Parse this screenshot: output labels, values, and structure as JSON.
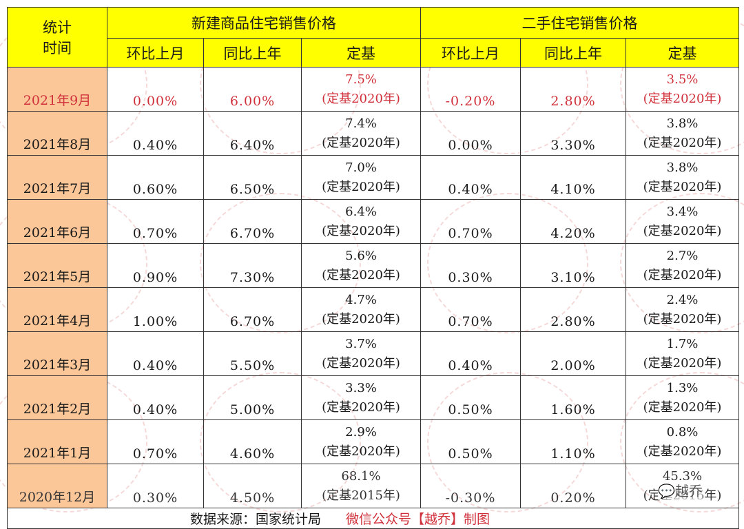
{
  "table": {
    "header": {
      "time_label_line1": "统计",
      "time_label_line2": "时间",
      "group_new": "新建商品住宅销售价格",
      "group_used": "二手住宅销售价格",
      "sub_columns": [
        "环比上月",
        "同比上年",
        "定基",
        "环比上月",
        "同比上年",
        "定基"
      ]
    },
    "rows": [
      {
        "time": "2021年9月",
        "new_mom": "0.00%",
        "new_yoy": "6.00%",
        "new_base_val": "7.5%",
        "new_base_note": "(定基2020年)",
        "used_mom": "-0.20%",
        "used_yoy": "2.80%",
        "used_base_val": "3.5%",
        "used_base_note": "(定基2020年)",
        "highlight": true
      },
      {
        "time": "2021年8月",
        "new_mom": "0.40%",
        "new_yoy": "6.40%",
        "new_base_val": "7.4%",
        "new_base_note": "(定基2020年)",
        "used_mom": "0.00%",
        "used_yoy": "3.30%",
        "used_base_val": "3.8%",
        "used_base_note": "(定基2020年)"
      },
      {
        "time": "2021年7月",
        "new_mom": "0.60%",
        "new_yoy": "6.50%",
        "new_base_val": "7.0%",
        "new_base_note": "(定基2020年)",
        "used_mom": "0.40%",
        "used_yoy": "4.10%",
        "used_base_val": "3.8%",
        "used_base_note": "(定基2020年)"
      },
      {
        "time": "2021年6月",
        "new_mom": "0.70%",
        "new_yoy": "6.70%",
        "new_base_val": "6.4%",
        "new_base_note": "(定基2020年)",
        "used_mom": "0.70%",
        "used_yoy": "4.20%",
        "used_base_val": "3.4%",
        "used_base_note": "(定基2020年)"
      },
      {
        "time": "2021年5月",
        "new_mom": "0.90%",
        "new_yoy": "7.30%",
        "new_base_val": "5.6%",
        "new_base_note": "(定基2020年)",
        "used_mom": "0.30%",
        "used_yoy": "3.10%",
        "used_base_val": "2.7%",
        "used_base_note": "(定基2020年)"
      },
      {
        "time": "2021年4月",
        "new_mom": "1.00%",
        "new_yoy": "6.70%",
        "new_base_val": "4.7%",
        "new_base_note": "(定基2020年)",
        "used_mom": "0.70%",
        "used_yoy": "2.80%",
        "used_base_val": "2.4%",
        "used_base_note": "(定基2020年)"
      },
      {
        "time": "2021年3月",
        "new_mom": "0.40%",
        "new_yoy": "5.50%",
        "new_base_val": "3.7%",
        "new_base_note": "(定基2020年)",
        "used_mom": "0.40%",
        "used_yoy": "2.00%",
        "used_base_val": "1.7%",
        "used_base_note": "(定基2020年)"
      },
      {
        "time": "2021年2月",
        "new_mom": "0.40%",
        "new_yoy": "5.00%",
        "new_base_val": "3.3%",
        "new_base_note": "(定基2020年)",
        "used_mom": "0.50%",
        "used_yoy": "1.60%",
        "used_base_val": "1.3%",
        "used_base_note": "(定基2020年)"
      },
      {
        "time": "2021年1月",
        "new_mom": "0.70%",
        "new_yoy": "4.60%",
        "new_base_val": "2.9%",
        "new_base_note": "(定基2020年)",
        "used_mom": "0.50%",
        "used_yoy": "1.10%",
        "used_base_val": "0.8%",
        "used_base_note": "(定基2020年)"
      },
      {
        "time": "2020年12月",
        "new_mom": "0.30%",
        "new_yoy": "4.50%",
        "new_base_val": "68.1%",
        "new_base_note": "(定基2015年)",
        "used_mom": "-0.30%",
        "used_yoy": "0.20%",
        "used_base_val": "45.3%",
        "used_base_note": "(定基2015年)"
      }
    ],
    "footer": {
      "source": "数据来源：国家统计局",
      "credit": "微信公众号【越乔】制图"
    }
  },
  "watermark": {
    "text": "【越乔】制图",
    "wechat_label": "越乔"
  },
  "colors": {
    "header_bg": "#ffff00",
    "time_col_bg": "#fbc698",
    "highlight_text": "#d0303a",
    "border": "#333333"
  }
}
